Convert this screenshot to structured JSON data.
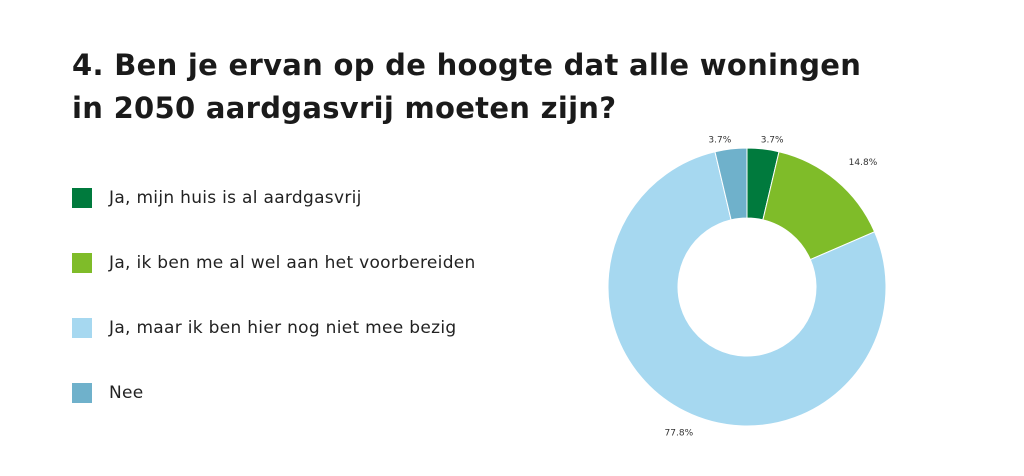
{
  "question": {
    "title": "4. Ben je ervan op de hoogte dat alle woningen in 2050 aardgasvrij moeten zijn?"
  },
  "chart_data": {
    "type": "pie",
    "donut": true,
    "title": "4. Ben je ervan op de hoogte dat alle woningen in 2050 aardgasvrij moeten zijn?",
    "legend_position": "left",
    "categories": [
      "Ja, mijn huis is al aardgasvrij",
      "Ja, ik ben me al wel aan het voorbereiden",
      "Ja, maar ik ben hier nog niet mee bezig",
      "Nee"
    ],
    "values": [
      3.7,
      14.8,
      77.8,
      3.7
    ],
    "value_labels": [
      "3.7%",
      "14.8%",
      "77.8%",
      "3.7%"
    ],
    "colors": [
      "#007a3d",
      "#7fbc29",
      "#a6d8f0",
      "#6fb1cb"
    ]
  }
}
